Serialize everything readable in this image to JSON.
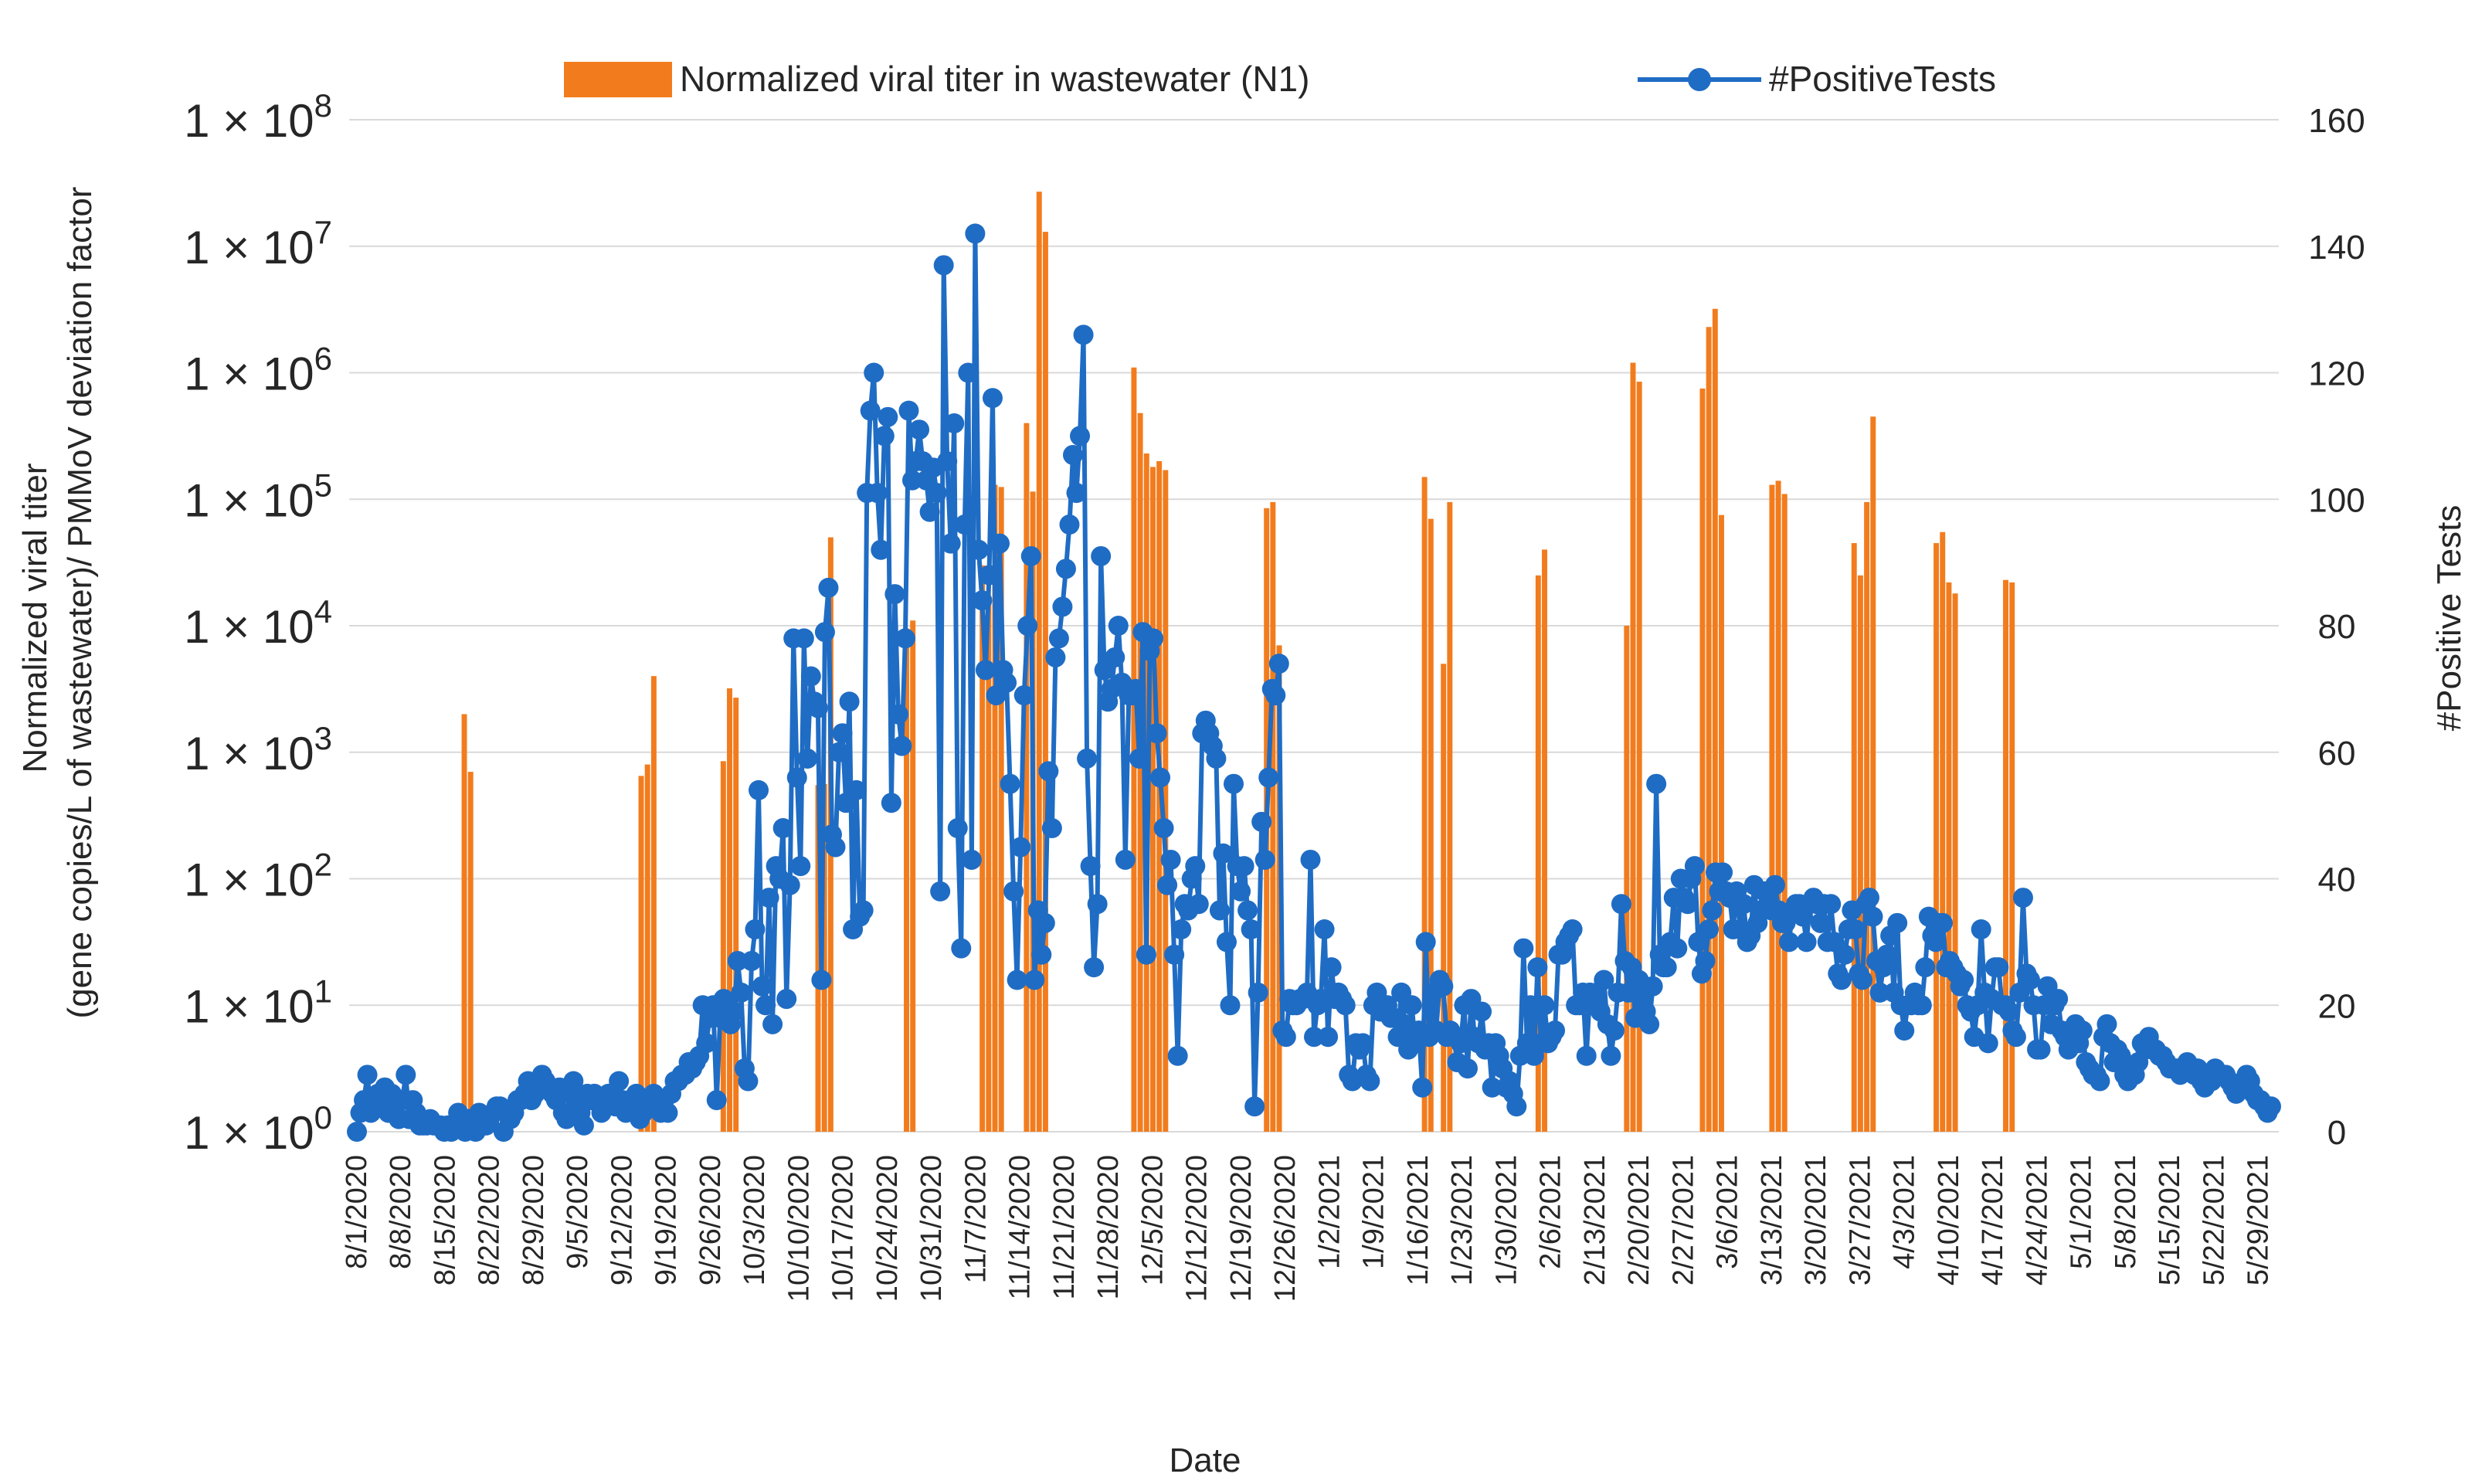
{
  "chart_data": {
    "type": "bar+line",
    "title": "",
    "xlabel": "Date",
    "ylabel_left": "Normalized viral titer (gene copies/L of wastewater)/ PMMoV deviation factor",
    "ylabel_left_lines": [
      "Normalized viral titer",
      "(gene copies/L of wastewater)/ PMMoV deviation factor"
    ],
    "ylabel_right": "#Positive Tests",
    "left_axis": {
      "scale": "log10",
      "range": [
        1,
        100000000
      ],
      "tick_labels": [
        {
          "base": "1 × 10",
          "exp": "0"
        },
        {
          "base": "1 × 10",
          "exp": "1"
        },
        {
          "base": "1 × 10",
          "exp": "2"
        },
        {
          "base": "1 × 10",
          "exp": "3"
        },
        {
          "base": "1 × 10",
          "exp": "4"
        },
        {
          "base": "1 × 10",
          "exp": "5"
        },
        {
          "base": "1 × 10",
          "exp": "6"
        },
        {
          "base": "1 × 10",
          "exp": "7"
        },
        {
          "base": "1 × 10",
          "exp": "8"
        }
      ]
    },
    "right_axis": {
      "range": [
        0,
        160
      ],
      "tick_labels": [
        "0",
        "20",
        "40",
        "60",
        "80",
        "100",
        "120",
        "140",
        "160"
      ]
    },
    "x_axis": {
      "start_date": "8/1/2020",
      "num_days": 304,
      "tick_labels": [
        "8/1/2020",
        "8/8/2020",
        "8/15/2020",
        "8/22/2020",
        "8/29/2020",
        "9/5/2020",
        "9/12/2020",
        "9/19/2020",
        "9/26/2020",
        "10/3/2020",
        "10/10/2020",
        "10/17/2020",
        "10/24/2020",
        "10/31/2020",
        "11/7/2020",
        "11/14/2020",
        "11/21/2020",
        "11/28/2020",
        "12/5/2020",
        "12/12/2020",
        "12/19/2020",
        "12/26/2020",
        "1/2/2021",
        "1/9/2021",
        "1/16/2021",
        "1/23/2021",
        "1/30/2021",
        "2/6/2021",
        "2/13/2021",
        "2/20/2021",
        "2/27/2021",
        "3/6/2021",
        "3/13/2021",
        "3/20/2021",
        "3/27/2021",
        "4/3/2021",
        "4/10/2021",
        "4/17/2021",
        "4/24/2021",
        "5/1/2021",
        "5/8/2021",
        "5/15/2021",
        "5/22/2021",
        "5/29/2021"
      ]
    },
    "legend": {
      "position": "top",
      "bars_label": "Normalized viral titer in wastewater (N1)",
      "line_label": "#PositiveTests"
    },
    "colors": {
      "bars": "#f27c1d",
      "line": "#1f6cc4",
      "grid": "#d9d9d9"
    },
    "grid": true,
    "bars_series": {
      "name": "Normalized viral titer in wastewater (N1)",
      "days": [
        17,
        18,
        45,
        46,
        47,
        58,
        59,
        60,
        73,
        74,
        75,
        87,
        88,
        99,
        100,
        101,
        102,
        106,
        107,
        108,
        109,
        123,
        124,
        125,
        126,
        127,
        128,
        144,
        145,
        146,
        169,
        170,
        172,
        173,
        187,
        188,
        201,
        202,
        203,
        213,
        214,
        215,
        216,
        224,
        225,
        226,
        237,
        238,
        239,
        240,
        250,
        251,
        252,
        253,
        261,
        262,
        263,
        264,
        273,
        274,
        275,
        276,
        281,
        282,
        283,
        284
      ],
      "values": [
        2000,
        700,
        650,
        800,
        4000,
        850,
        3200,
        2700,
        550,
        560,
        50000,
        9500,
        11000,
        30000,
        15000,
        130000,
        125000,
        400000,
        115000,
        27000000,
        13000000,
        1100000,
        480000,
        230000,
        180000,
        200000,
        170000,
        85000,
        95000,
        7000,
        150000,
        70000,
        5000,
        95000,
        25000,
        40000,
        10000,
        1200000,
        850000,
        750000,
        2300000,
        3200000,
        75000,
        130000,
        140000,
        110000,
        45000,
        25000,
        95000,
        450000,
        45000,
        55000,
        22000,
        18000,
        23000,
        22000,
        1,
        1,
        1,
        1,
        1,
        1,
        1,
        1,
        1,
        1
      ]
    },
    "line_series": {
      "name": "#PositiveTests",
      "values": [
        0,
        3,
        5,
        9,
        3,
        5,
        6,
        4,
        7,
        3,
        6,
        4,
        2,
        5,
        9,
        2,
        5,
        3,
        1,
        1,
        1,
        2,
        1,
        1,
        1,
        0,
        1,
        0,
        1,
        3,
        1,
        0,
        2,
        1,
        0,
        3,
        1,
        1,
        2,
        3,
        4,
        4,
        0,
        3,
        2,
        3,
        5,
        5,
        6,
        8,
        5,
        6,
        7,
        9,
        8,
        7,
        6,
        5,
        7,
        3,
        2,
        6,
        8,
        5,
        3,
        1,
        6,
        5,
        6,
        5,
        3,
        5,
        6,
        5,
        4,
        8,
        5,
        3,
        5,
        4,
        6,
        2,
        3,
        5,
        4,
        6,
        4,
        3,
        5,
        3,
        6,
        8,
        8,
        9,
        9,
        11,
        10,
        11,
        12,
        20,
        14,
        18,
        20,
        5,
        18,
        21,
        18,
        17,
        19,
        27,
        22,
        10,
        8,
        27,
        32,
        54,
        23,
        20,
        37,
        17,
        42,
        40,
        48,
        21,
        39,
        78,
        56,
        42,
        78,
        59,
        72,
        68,
        67,
        24,
        79,
        86,
        47,
        45,
        60,
        63,
        52,
        68,
        32,
        54,
        34,
        35,
        101,
        114,
        120,
        101,
        92,
        110,
        113,
        52,
        85,
        66,
        61,
        78,
        114,
        103,
        106,
        111,
        106,
        103,
        98,
        105,
        101,
        38,
        137,
        106,
        93,
        112,
        48,
        29,
        96,
        120,
        43,
        142,
        92,
        84,
        73,
        88,
        116,
        69,
        93,
        73,
        71,
        55,
        38,
        24,
        45,
        69,
        80,
        91,
        24,
        35,
        28,
        33,
        57,
        48,
        75,
        78,
        83,
        89,
        96,
        107,
        101,
        110,
        126,
        59,
        42,
        26,
        36,
        91,
        73,
        68,
        70,
        75,
        80,
        71,
        43,
        69,
        69,
        70,
        59,
        79,
        28,
        76,
        78,
        63,
        56,
        48,
        39,
        43,
        28,
        12,
        32,
        36,
        35,
        40,
        42,
        36,
        63,
        65,
        63,
        61,
        59,
        35,
        44,
        30,
        20,
        55,
        42,
        38,
        42,
        35,
        32,
        4,
        22,
        49,
        43,
        56,
        70,
        69,
        74,
        16,
        15,
        21,
        20,
        20,
        21,
        21,
        22,
        43,
        15,
        20,
        21,
        32,
        15,
        26,
        21,
        22,
        21,
        20,
        9,
        8,
        14,
        13,
        14,
        9,
        8,
        20,
        22,
        19,
        20,
        20,
        18,
        18,
        15,
        22,
        17,
        13,
        20,
        14,
        16,
        7,
        30,
        15,
        22,
        16,
        24,
        23,
        15,
        16,
        15,
        11,
        14,
        20,
        10,
        21,
        15,
        14,
        19,
        13,
        14,
        7,
        14,
        12,
        10,
        7,
        8,
        6,
        4,
        12,
        29,
        14,
        20,
        12,
        26,
        14,
        20,
        14,
        15,
        16,
        28,
        28,
        30,
        31,
        32,
        20,
        20,
        22,
        12,
        22,
        21,
        22,
        19,
        24,
        17,
        12,
        16,
        22,
        36,
        27,
        22,
        26,
        18,
        24,
        21,
        19,
        17,
        23,
        55,
        28,
        26,
        26,
        30,
        37,
        29,
        40,
        37,
        36,
        40,
        42,
        30,
        25,
        27,
        32,
        35,
        41,
        38,
        41,
        38,
        37,
        32,
        38,
        32,
        36,
        30,
        31,
        39,
        33,
        35,
        38,
        36,
        35,
        39,
        35,
        33,
        33,
        30,
        35,
        36,
        36,
        34,
        30,
        36,
        37,
        36,
        33,
        36,
        30,
        36,
        30,
        25,
        24,
        28,
        32,
        35,
        32,
        25,
        24,
        36,
        37,
        34,
        27,
        22,
        26,
        28,
        31,
        22,
        33,
        20,
        16,
        20,
        20,
        22,
        20,
        20,
        26,
        34,
        31,
        30,
        33,
        33,
        26,
        27,
        26,
        25,
        23,
        24,
        20,
        19,
        15,
        20,
        32,
        22,
        14,
        21,
        26,
        26,
        20,
        20,
        19,
        16,
        15,
        22,
        37,
        25,
        24,
        20,
        13,
        13,
        20,
        23,
        17,
        20,
        21,
        16,
        15,
        13,
        14,
        17,
        14,
        16,
        11,
        10,
        9,
        9,
        8,
        15,
        17,
        14,
        11,
        13,
        12,
        9,
        8,
        10,
        9,
        11,
        14,
        13,
        15,
        13,
        13,
        12,
        12,
        11,
        10,
        10,
        10,
        9,
        10,
        11,
        10,
        9,
        10,
        8,
        7,
        8,
        8,
        10,
        9,
        9,
        9,
        8,
        7,
        6,
        7,
        8,
        9,
        8,
        6,
        5,
        5,
        4,
        3,
        4
      ]
    }
  }
}
